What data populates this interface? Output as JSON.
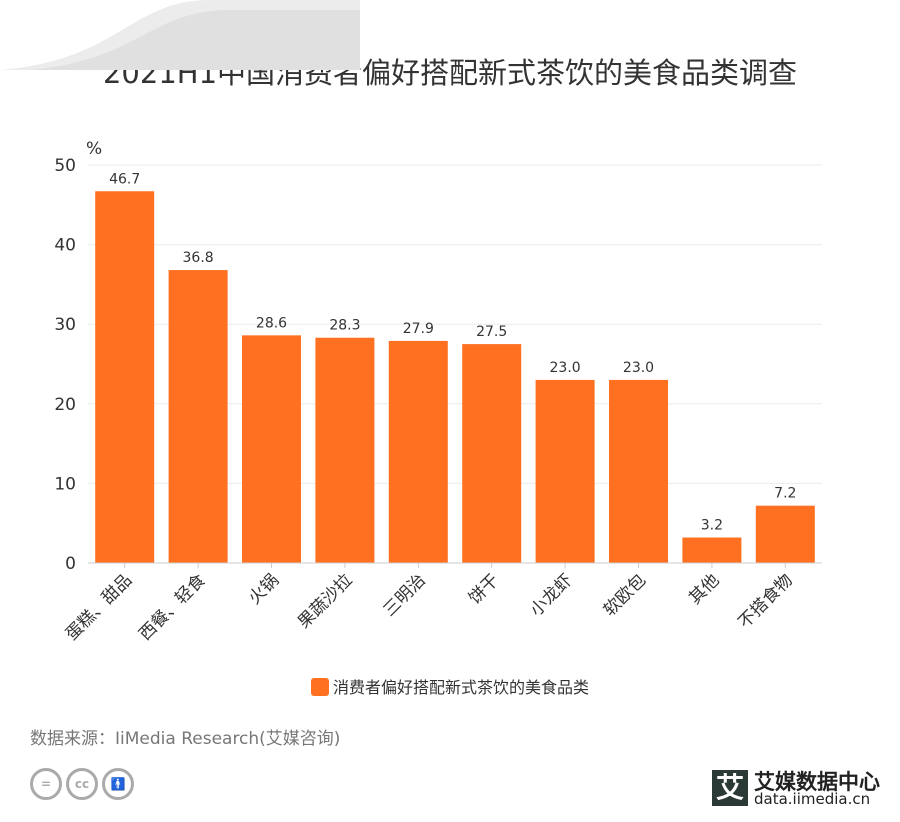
{
  "chart_data": {
    "type": "bar",
    "title": "2021H1中国消费者偏好搭配新式茶饮的美食品类调查",
    "ylabel": "%",
    "xlabel": "",
    "ylim": [
      0,
      50
    ],
    "yticks": [
      "0",
      "10",
      "20",
      "30",
      "40",
      "50"
    ],
    "grid": true,
    "legend_position": "bottom",
    "categories": [
      "蛋糕、甜品",
      "西餐、轻食",
      "火锅",
      "果蔬沙拉",
      "三明治",
      "饼干",
      "小龙虾",
      "软欧包",
      "其他",
      "不搭食物"
    ],
    "series": [
      {
        "name": "消费者偏好搭配新式茶饮的美食品类",
        "values": [
          46.7,
          36.8,
          28.6,
          28.3,
          27.9,
          27.5,
          23.0,
          23.0,
          3.2,
          7.2
        ],
        "labels": [
          "46.7",
          "36.8",
          "28.6",
          "28.3",
          "27.9",
          "27.5",
          "23.0",
          "23.0",
          "3.2",
          "7.2"
        ],
        "color": "#ff7020"
      }
    ]
  },
  "footer": {
    "source": "数据来源：IiMedia Research(艾媒咨询)",
    "brand_logo": "艾",
    "brand_name": "艾媒数据中心",
    "brand_url": "data.iimedia.cn"
  }
}
